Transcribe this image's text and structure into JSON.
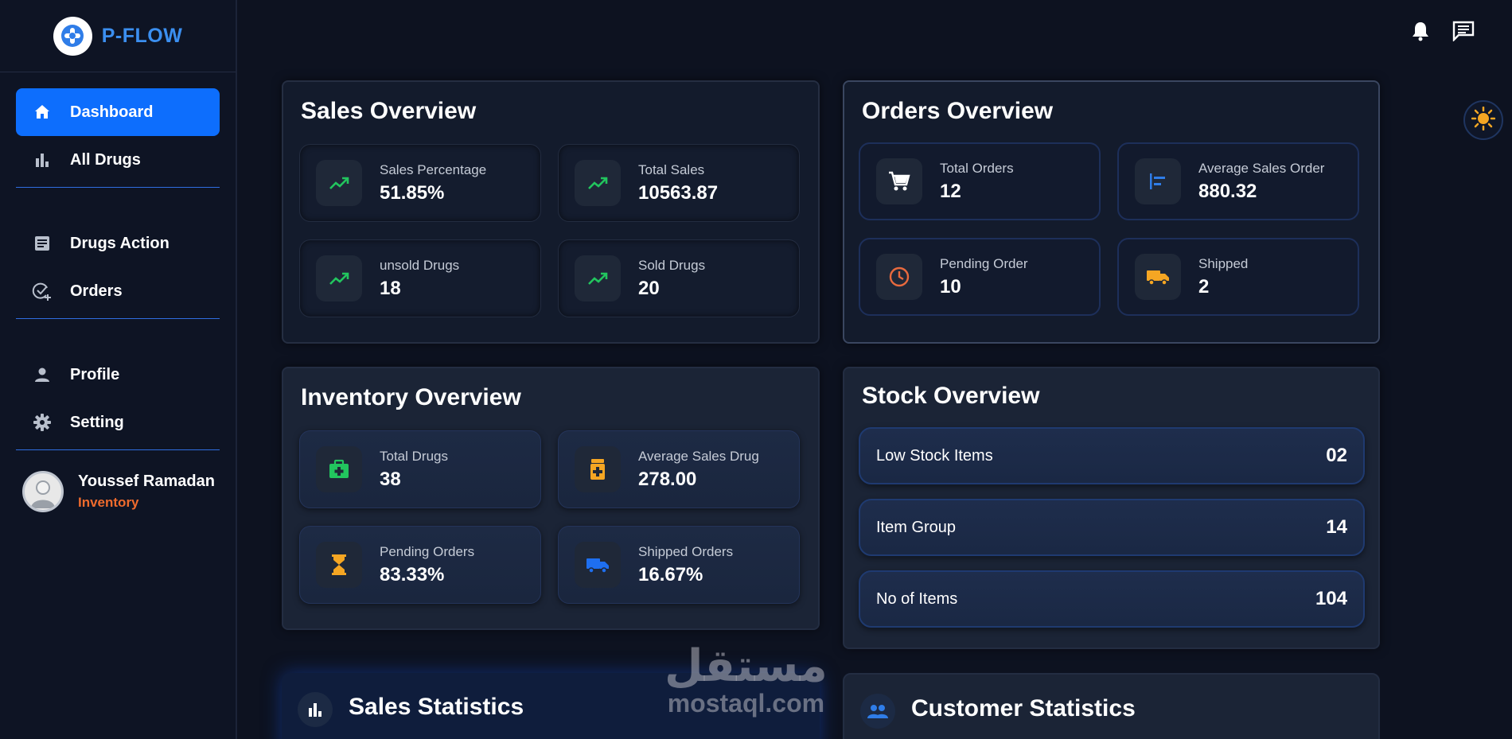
{
  "brand": {
    "name": "P-FLOW"
  },
  "sidebar": {
    "items": [
      {
        "label": "Dashboard",
        "icon": "home-icon",
        "active": true
      },
      {
        "label": "All Drugs",
        "icon": "bar-chart-icon"
      },
      {
        "label": "Drugs Action",
        "icon": "document-icon"
      },
      {
        "label": "Orders",
        "icon": "check-plus-icon"
      },
      {
        "label": "Profile",
        "icon": "person-icon"
      },
      {
        "label": "Setting",
        "icon": "gear-icon"
      }
    ],
    "user": {
      "name": "Youssef Ramadan",
      "role": "Inventory"
    }
  },
  "sales": {
    "title": "Sales Overview",
    "stats": [
      {
        "label": "Sales Percentage",
        "value": "51.85%",
        "icon": "trending-up-icon"
      },
      {
        "label": "Total Sales",
        "value": "10563.87",
        "icon": "trending-up-icon"
      },
      {
        "label": "unsold Drugs",
        "value": "18",
        "icon": "trending-up-icon"
      },
      {
        "label": "Sold Drugs",
        "value": "20",
        "icon": "trending-up-icon"
      }
    ]
  },
  "orders": {
    "title": "Orders Overview",
    "stats": [
      {
        "label": "Total Orders",
        "value": "12",
        "icon": "cart-icon"
      },
      {
        "label": "Average Sales Order",
        "value": "880.32",
        "icon": "align-left-icon"
      },
      {
        "label": "Pending Order",
        "value": "10",
        "icon": "clock-icon"
      },
      {
        "label": "Shipped",
        "value": "2",
        "icon": "truck-icon"
      }
    ]
  },
  "inventory": {
    "title": "Inventory Overview",
    "stats": [
      {
        "label": "Total Drugs",
        "value": "38",
        "icon": "medical-kit-icon"
      },
      {
        "label": "Average Sales Drug",
        "value": "278.00",
        "icon": "medicine-bottle-icon"
      },
      {
        "label": "Pending Orders",
        "value": "83.33%",
        "icon": "hourglass-icon"
      },
      {
        "label": "Shipped Orders",
        "value": "16.67%",
        "icon": "truck-icon"
      }
    ]
  },
  "stock": {
    "title": "Stock Overview",
    "rows": [
      {
        "label": "Low Stock Items",
        "value": "02"
      },
      {
        "label": "Item Group",
        "value": "14"
      },
      {
        "label": "No of Items",
        "value": "104"
      }
    ]
  },
  "bottom": {
    "sales_title": "Sales Statistics",
    "customer_title": "Customer Statistics"
  },
  "watermark": {
    "arabic": "مستقل",
    "latin": "mostaql.com"
  },
  "colors": {
    "accent": "#0d6efd",
    "brand": "#3b8ff0",
    "role": "#ef6b2d",
    "trend": "#22c55e",
    "sun": "#f5a623"
  }
}
